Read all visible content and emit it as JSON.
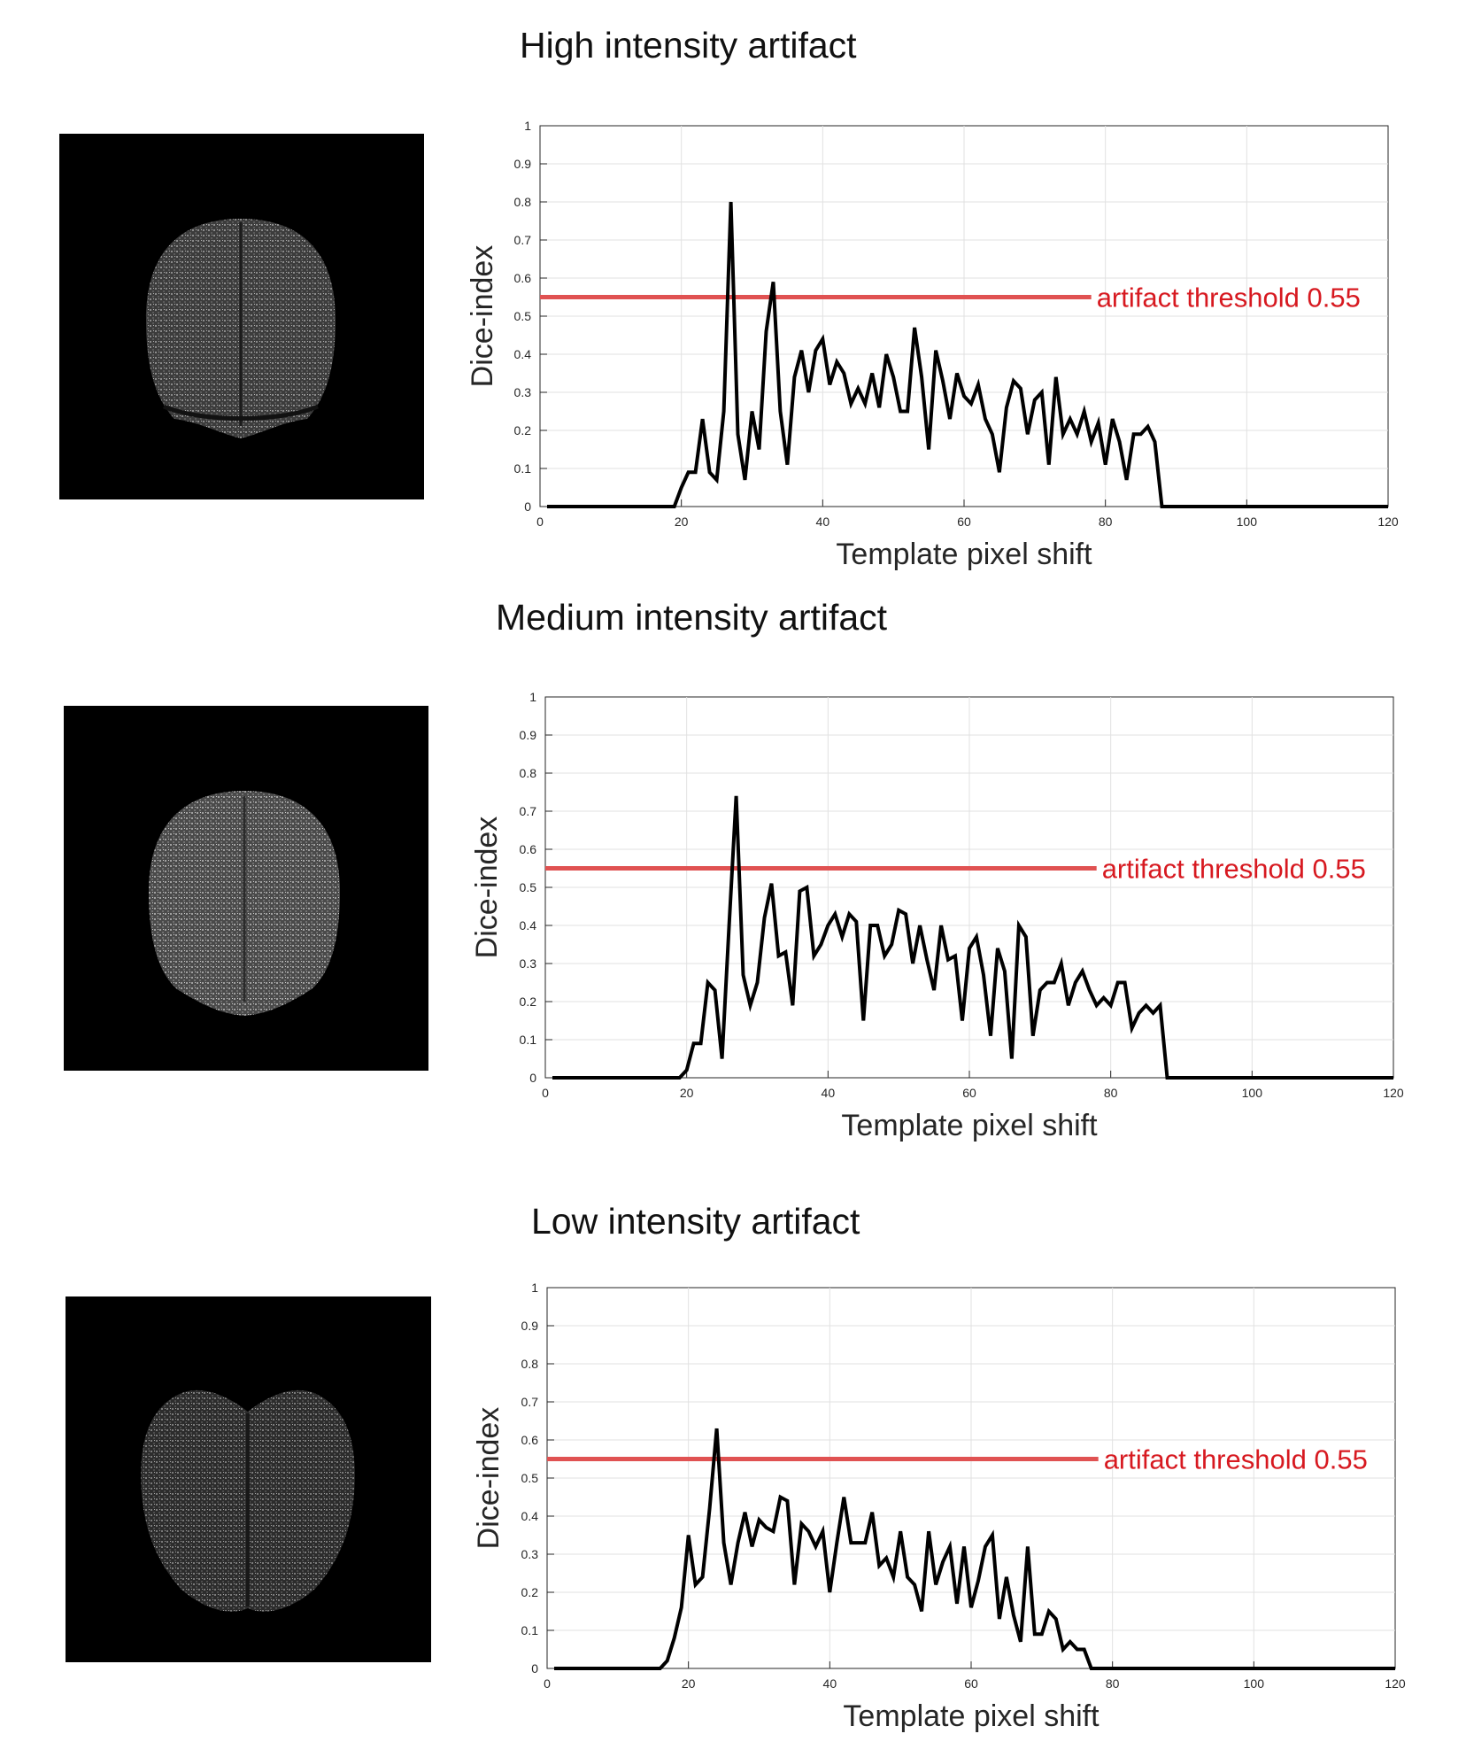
{
  "colors": {
    "series": "#000000",
    "threshold": "#e05252",
    "threshold_text": "#d71920",
    "grid": "#e1e1e1"
  },
  "images": [
    {
      "name": "mri-high-intensity"
    },
    {
      "name": "mri-medium-intensity"
    },
    {
      "name": "mri-low-intensity"
    }
  ],
  "chart_data": [
    {
      "type": "line",
      "title": "High intensity artifact",
      "xlabel": "Template pixel shift",
      "ylabel": "Dice-index",
      "xlim": [
        0,
        120
      ],
      "ylim": [
        0,
        1
      ],
      "xticks": [
        "0",
        "20",
        "40",
        "60",
        "80",
        "100",
        "120"
      ],
      "yticks": [
        "0",
        "0.1",
        "0.2",
        "0.3",
        "0.4",
        "0.5",
        "0.6",
        "0.7",
        "0.8",
        "0.9",
        "1"
      ],
      "grid": true,
      "threshold": {
        "value": 0.55,
        "x_end": 78,
        "label": "artifact threshold 0.55"
      },
      "series": [
        {
          "name": "Dice-index",
          "x": [
            1,
            19,
            20,
            21,
            22,
            23,
            24,
            25,
            26,
            27,
            28,
            29,
            30,
            31,
            32,
            33,
            34,
            35,
            36,
            37,
            38,
            39,
            40,
            41,
            42,
            43,
            44,
            45,
            46,
            47,
            48,
            49,
            50,
            51,
            52,
            53,
            54,
            55,
            56,
            57,
            58,
            59,
            60,
            61,
            62,
            63,
            64,
            65,
            66,
            67,
            68,
            69,
            70,
            71,
            72,
            73,
            74,
            75,
            76,
            77,
            78,
            79,
            80,
            81,
            82,
            83,
            84,
            85,
            86,
            87,
            88,
            120
          ],
          "y": [
            0,
            0,
            0.05,
            0.09,
            0.09,
            0.23,
            0.09,
            0.07,
            0.25,
            0.8,
            0.19,
            0.07,
            0.25,
            0.15,
            0.46,
            0.59,
            0.25,
            0.11,
            0.34,
            0.41,
            0.3,
            0.41,
            0.44,
            0.32,
            0.38,
            0.35,
            0.27,
            0.31,
            0.27,
            0.35,
            0.26,
            0.4,
            0.34,
            0.25,
            0.25,
            0.47,
            0.34,
            0.15,
            0.41,
            0.33,
            0.23,
            0.35,
            0.29,
            0.27,
            0.32,
            0.23,
            0.19,
            0.09,
            0.26,
            0.33,
            0.31,
            0.19,
            0.28,
            0.3,
            0.11,
            0.34,
            0.19,
            0.23,
            0.19,
            0.25,
            0.17,
            0.22,
            0.11,
            0.23,
            0.17,
            0.07,
            0.19,
            0.19,
            0.21,
            0.17,
            0,
            0
          ]
        }
      ]
    },
    {
      "type": "line",
      "title": "Medium intensity artifact",
      "xlabel": "Template pixel shift",
      "ylabel": "Dice-index",
      "xlim": [
        0,
        120
      ],
      "ylim": [
        0,
        1
      ],
      "xticks": [
        "0",
        "20",
        "40",
        "60",
        "80",
        "100",
        "120"
      ],
      "yticks": [
        "0",
        "0.1",
        "0.2",
        "0.3",
        "0.4",
        "0.5",
        "0.6",
        "0.7",
        "0.8",
        "0.9",
        "1"
      ],
      "grid": true,
      "threshold": {
        "value": 0.55,
        "x_end": 78,
        "label": "artifact threshold 0.55"
      },
      "series": [
        {
          "name": "Dice-index",
          "x": [
            1,
            19,
            20,
            21,
            22,
            23,
            24,
            25,
            26,
            27,
            28,
            29,
            30,
            31,
            32,
            33,
            34,
            35,
            36,
            37,
            38,
            39,
            40,
            41,
            42,
            43,
            44,
            45,
            46,
            47,
            48,
            49,
            50,
            51,
            52,
            53,
            54,
            55,
            56,
            57,
            58,
            59,
            60,
            61,
            62,
            63,
            64,
            65,
            66,
            67,
            68,
            69,
            70,
            71,
            72,
            73,
            74,
            75,
            76,
            77,
            78,
            79,
            80,
            81,
            82,
            83,
            84,
            85,
            86,
            87,
            88,
            120
          ],
          "y": [
            0,
            0,
            0.02,
            0.09,
            0.09,
            0.25,
            0.23,
            0.05,
            0.4,
            0.74,
            0.27,
            0.19,
            0.25,
            0.42,
            0.51,
            0.32,
            0.33,
            0.19,
            0.49,
            0.5,
            0.32,
            0.35,
            0.4,
            0.43,
            0.37,
            0.43,
            0.41,
            0.15,
            0.4,
            0.4,
            0.32,
            0.35,
            0.44,
            0.43,
            0.3,
            0.4,
            0.31,
            0.23,
            0.4,
            0.31,
            0.32,
            0.15,
            0.34,
            0.37,
            0.27,
            0.11,
            0.34,
            0.28,
            0.05,
            0.4,
            0.37,
            0.11,
            0.23,
            0.25,
            0.25,
            0.3,
            0.19,
            0.25,
            0.28,
            0.23,
            0.19,
            0.21,
            0.19,
            0.25,
            0.25,
            0.13,
            0.17,
            0.19,
            0.17,
            0.19,
            0,
            0
          ]
        }
      ]
    },
    {
      "type": "line",
      "title": "Low intensity artifact",
      "xlabel": "Template pixel shift",
      "ylabel": "Dice-index",
      "xlim": [
        0,
        120
      ],
      "ylim": [
        0,
        1
      ],
      "xticks": [
        "0",
        "20",
        "40",
        "60",
        "80",
        "100",
        "120"
      ],
      "yticks": [
        "0",
        "0.1",
        "0.2",
        "0.3",
        "0.4",
        "0.5",
        "0.6",
        "0.7",
        "0.8",
        "0.9",
        "1"
      ],
      "grid": true,
      "threshold": {
        "value": 0.55,
        "x_end": 78,
        "label": "artifact threshold 0.55"
      },
      "series": [
        {
          "name": "Dice-index",
          "x": [
            1,
            16,
            17,
            18,
            19,
            20,
            21,
            22,
            23,
            24,
            25,
            26,
            27,
            28,
            29,
            30,
            31,
            32,
            33,
            34,
            35,
            36,
            37,
            38,
            39,
            40,
            41,
            42,
            43,
            44,
            45,
            46,
            47,
            48,
            49,
            50,
            51,
            52,
            53,
            54,
            55,
            56,
            57,
            58,
            59,
            60,
            61,
            62,
            63,
            64,
            65,
            66,
            67,
            68,
            69,
            70,
            71,
            72,
            73,
            74,
            75,
            76,
            77,
            120
          ],
          "y": [
            0,
            0,
            0.02,
            0.08,
            0.16,
            0.35,
            0.22,
            0.24,
            0.42,
            0.63,
            0.33,
            0.22,
            0.33,
            0.41,
            0.32,
            0.39,
            0.37,
            0.36,
            0.45,
            0.44,
            0.22,
            0.38,
            0.36,
            0.32,
            0.36,
            0.2,
            0.33,
            0.45,
            0.33,
            0.33,
            0.33,
            0.41,
            0.27,
            0.29,
            0.24,
            0.36,
            0.24,
            0.22,
            0.15,
            0.36,
            0.22,
            0.28,
            0.32,
            0.17,
            0.32,
            0.16,
            0.23,
            0.32,
            0.35,
            0.13,
            0.24,
            0.14,
            0.07,
            0.32,
            0.09,
            0.09,
            0.15,
            0.13,
            0.05,
            0.07,
            0.05,
            0.05,
            0,
            0
          ]
        }
      ]
    }
  ]
}
